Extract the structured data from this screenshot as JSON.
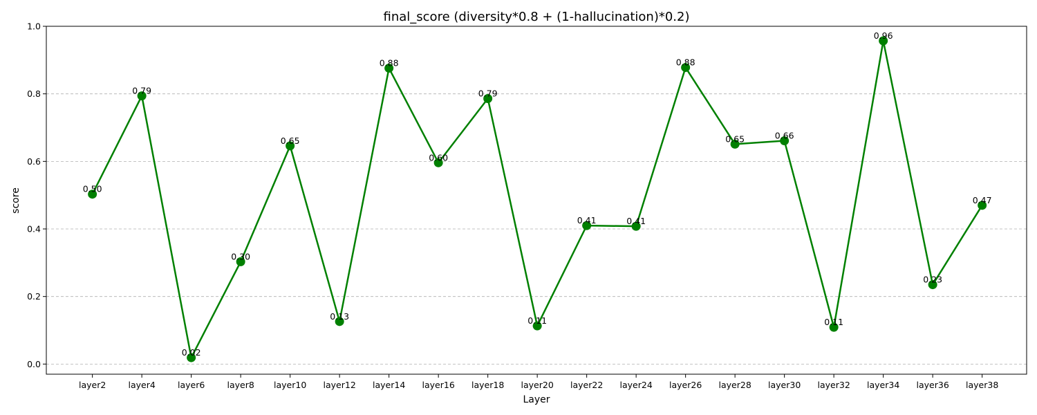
{
  "chart_data": {
    "type": "line",
    "title": "final_score (diversity*0.8 + (1-hallucination)*0.2)",
    "xlabel": "Layer",
    "ylabel": "score",
    "categories": [
      "layer2",
      "layer4",
      "layer6",
      "layer8",
      "layer10",
      "layer12",
      "layer14",
      "layer16",
      "layer18",
      "layer20",
      "layer22",
      "layer24",
      "layer26",
      "layer28",
      "layer30",
      "layer32",
      "layer34",
      "layer36",
      "layer38"
    ],
    "values": [
      0.503,
      0.794,
      0.019,
      0.303,
      0.646,
      0.126,
      0.876,
      0.596,
      0.786,
      0.113,
      0.41,
      0.408,
      0.878,
      0.651,
      0.661,
      0.109,
      0.957,
      0.235,
      0.47
    ],
    "data_labels": [
      "0.50",
      "0.79",
      "0.02",
      "0.30",
      "0.65",
      "0.13",
      "0.88",
      "0.60",
      "0.79",
      "0.11",
      "0.41",
      "0.41",
      "0.88",
      "0.65",
      "0.66",
      "0.11",
      "0.96",
      "0.23",
      "0.47"
    ],
    "ylim": [
      -0.03,
      1.0
    ],
    "yticks": [
      0.0,
      0.2,
      0.4,
      0.6,
      0.8,
      1.0
    ],
    "ytick_labels": [
      "0.0",
      "0.2",
      "0.4",
      "0.6",
      "0.8",
      "1.0"
    ],
    "grid": "horizontal dashed",
    "legend": "none",
    "colors": {
      "line": "#008000",
      "marker": "#008000",
      "grid": "#b0b0b0"
    }
  }
}
